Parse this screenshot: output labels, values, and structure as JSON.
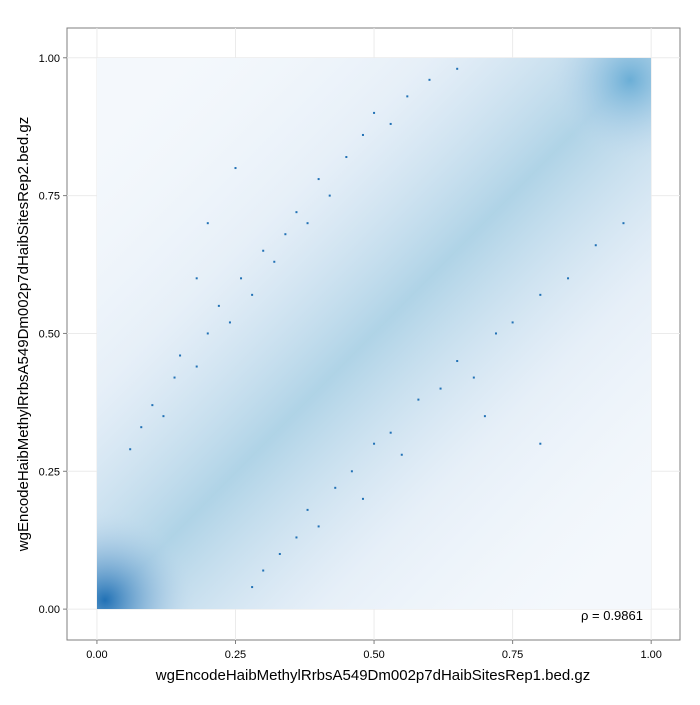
{
  "chart_data": {
    "type": "scatter",
    "x_label": "wgEncodeHaibMethylRrbsA549Dm002p7dHaibSitesRep1.bed.gz",
    "y_label": "wgEncodeHaibMethylRrbsA549Dm002p7dHaibSitesRep2.bed.gz",
    "annotation": "ρ = 0.9861",
    "color": "#2171b5",
    "grid": true,
    "xlim": [
      -0.054,
      1.052
    ],
    "ylim": [
      -0.056,
      1.054
    ],
    "xticks": [
      {
        "value": 0,
        "label": "0.00"
      },
      {
        "value": 0.25,
        "label": "0.25"
      },
      {
        "value": 0.5,
        "label": "0.50"
      },
      {
        "value": 0.75,
        "label": "0.75"
      },
      {
        "value": 1,
        "label": "1.00"
      }
    ],
    "yticks": [
      {
        "value": 0,
        "label": "0.00"
      },
      {
        "value": 0.25,
        "label": "0.25"
      },
      {
        "value": 0.5,
        "label": "0.50"
      },
      {
        "value": 0.75,
        "label": "0.75"
      },
      {
        "value": 1,
        "label": "1.00"
      }
    ],
    "x": [
      0.06,
      0.08,
      0.1,
      0.12,
      0.14,
      0.15,
      0.18,
      0.2,
      0.22,
      0.24,
      0.26,
      0.28,
      0.3,
      0.32,
      0.34,
      0.36,
      0.38,
      0.4,
      0.42,
      0.45,
      0.48,
      0.5,
      0.53,
      0.56,
      0.6,
      0.65,
      0.2,
      0.25,
      0.18,
      0.28,
      0.3,
      0.33,
      0.36,
      0.38,
      0.4,
      0.43,
      0.46,
      0.48,
      0.5,
      0.53,
      0.55,
      0.58,
      0.62,
      0.65,
      0.68,
      0.72,
      0.75,
      0.8,
      0.85,
      0.9,
      0.95,
      0.7,
      0.8
    ],
    "y": [
      0.29,
      0.33,
      0.37,
      0.35,
      0.42,
      0.46,
      0.44,
      0.5,
      0.55,
      0.52,
      0.6,
      0.57,
      0.65,
      0.63,
      0.68,
      0.72,
      0.7,
      0.78,
      0.75,
      0.82,
      0.86,
      0.9,
      0.88,
      0.93,
      0.96,
      0.98,
      0.7,
      0.8,
      0.6,
      0.04,
      0.07,
      0.1,
      0.13,
      0.18,
      0.15,
      0.22,
      0.25,
      0.2,
      0.3,
      0.32,
      0.28,
      0.38,
      0.4,
      0.45,
      0.42,
      0.5,
      0.52,
      0.57,
      0.6,
      0.66,
      0.7,
      0.35,
      0.3
    ]
  }
}
